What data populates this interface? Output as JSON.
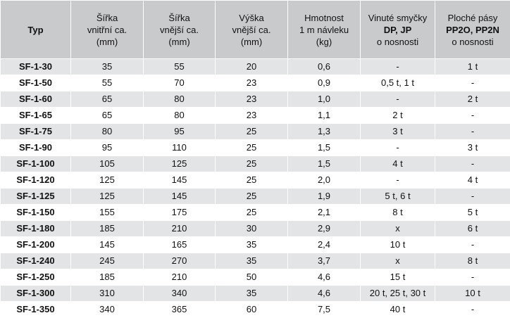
{
  "table": {
    "headers": {
      "typ": "Typ",
      "sirka_vnitrni": [
        "Šířka",
        "vnitřní ca.",
        "(mm)"
      ],
      "sirka_vnejsi": [
        "Šířka",
        "vnější ca.",
        "(mm)"
      ],
      "vyska_vnejsi": [
        "Výška",
        "vnější ca.",
        "(mm)"
      ],
      "hmotnost": [
        "Hmotnost",
        "1 m návleku",
        "(kg)"
      ],
      "vinute": [
        "Vinuté smyčky",
        "DP, JP",
        "o nosnosti"
      ],
      "ploche": [
        "Ploché pásy",
        "PP2O, PP2N",
        "o nosnosti"
      ]
    },
    "rows": [
      [
        "SF-1-30",
        "35",
        "55",
        "20",
        "0,6",
        "-",
        "1 t"
      ],
      [
        "SF-1-50",
        "55",
        "70",
        "23",
        "0,9",
        "0,5 t, 1 t",
        "-"
      ],
      [
        "SF-1-60",
        "65",
        "80",
        "23",
        "1,0",
        "-",
        "2 t"
      ],
      [
        "SF-1-65",
        "65",
        "80",
        "23",
        "1,1",
        "2 t",
        "-"
      ],
      [
        "SF-1-75",
        "80",
        "95",
        "25",
        "1,3",
        "3 t",
        "-"
      ],
      [
        "SF-1-90",
        "95",
        "110",
        "25",
        "1,5",
        "-",
        "3 t"
      ],
      [
        "SF-1-100",
        "105",
        "125",
        "25",
        "1,5",
        "4 t",
        "-"
      ],
      [
        "SF-1-120",
        "125",
        "145",
        "25",
        "2,0",
        "-",
        "4 t"
      ],
      [
        "SF-1-125",
        "125",
        "145",
        "25",
        "1,9",
        "5 t, 6 t",
        "-"
      ],
      [
        "SF-1-150",
        "155",
        "175",
        "25",
        "2,1",
        "8 t",
        "5 t"
      ],
      [
        "SF-1-180",
        "185",
        "210",
        "30",
        "2,9",
        "x",
        "6 t"
      ],
      [
        "SF-1-200",
        "145",
        "165",
        "35",
        "2,4",
        "10 t",
        "-"
      ],
      [
        "SF-1-240",
        "245",
        "270",
        "35",
        "3,7",
        "x",
        "8 t"
      ],
      [
        "SF-1-250",
        "185",
        "210",
        "50",
        "4,6",
        "15 t",
        "-"
      ],
      [
        "SF-1-300",
        "310",
        "340",
        "35",
        "4,6",
        "20 t, 25 t, 30 t",
        "10 t"
      ],
      [
        "SF-1-350",
        "340",
        "365",
        "60",
        "7,5",
        "40 t",
        "-"
      ]
    ]
  }
}
